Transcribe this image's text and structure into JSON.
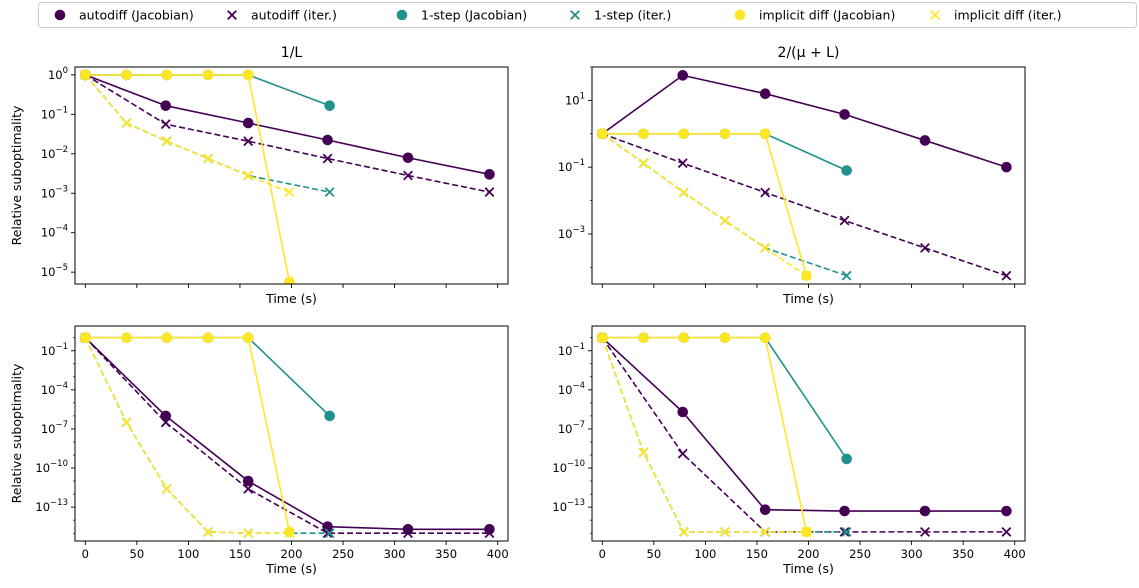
{
  "chart_data": {
    "type": "line",
    "legend": {
      "placement": "top",
      "entries": [
        {
          "label": "autodiff (Jacobian)",
          "color": "#440154",
          "marker": "circle"
        },
        {
          "label": "autodiff (iter.)",
          "color": "#440154",
          "marker": "x"
        },
        {
          "label": "1-step (Jacobian)",
          "color": "#21918c",
          "marker": "circle"
        },
        {
          "label": "1-step (iter.)",
          "color": "#21918c",
          "marker": "x"
        },
        {
          "label": "implicit diff (Jacobian)",
          "color": "#fde725",
          "marker": "circle"
        },
        {
          "label": "implicit diff (iter.)",
          "color": "#fde725",
          "marker": "x"
        }
      ]
    },
    "panels": [
      {
        "title": "1/L",
        "xlabel": "Time (s)",
        "ylabel": "Relative suboptimality",
        "yscale": "log",
        "xlim": [
          -10,
          410
        ],
        "xticks": [
          0,
          50,
          100,
          150,
          200,
          250,
          300,
          350,
          400
        ],
        "show_xticklabels": false,
        "ylim_exp": [
          -5.3,
          0.2
        ],
        "yticks": [
          {
            "exp": 0,
            "label": "10^0"
          },
          {
            "exp": -1,
            "label": "10^-1"
          },
          {
            "exp": -2,
            "label": "10^-2"
          },
          {
            "exp": -3,
            "label": "10^-3"
          },
          {
            "exp": -4,
            "label": "10^-4"
          },
          {
            "exp": -5,
            "label": "10^-5"
          }
        ],
        "series": [
          {
            "name": "autodiff (Jacobian)",
            "x": [
              0,
              78,
              158,
              235,
              313,
              392
            ],
            "y_exp": [
              0,
              -0.78,
              -1.22,
              -1.65,
              -2.1,
              -2.52
            ]
          },
          {
            "name": "autodiff (iter.)",
            "x": [
              0,
              78,
              158,
              235,
              313,
              392
            ],
            "y_exp": [
              0,
              -1.25,
              -1.68,
              -2.12,
              -2.55,
              -2.97
            ]
          },
          {
            "name": "1-step (Jacobian)",
            "x": [
              0,
              40,
              79,
              119,
              158,
              237
            ],
            "y_exp": [
              0,
              0,
              0,
              0,
              0,
              -0.78
            ]
          },
          {
            "name": "1-step (iter.)",
            "x": [
              0,
              40,
              79,
              119,
              158,
              237
            ],
            "y_exp": [
              0,
              -1.22,
              -1.68,
              -2.12,
              -2.55,
              -2.97
            ]
          },
          {
            "name": "implicit diff (Jacobian)",
            "x": [
              0,
              40,
              79,
              119,
              158,
              198
            ],
            "y_exp": [
              0,
              0,
              0,
              0,
              0,
              -5.25
            ]
          },
          {
            "name": "implicit diff (iter.)",
            "x": [
              0,
              40,
              79,
              119,
              158,
              198
            ],
            "y_exp": [
              0,
              -1.22,
              -1.68,
              -2.12,
              -2.55,
              -2.97
            ]
          }
        ]
      },
      {
        "title": "2/(μ + L)",
        "xlabel": "Time (s)",
        "ylabel": "",
        "yscale": "log",
        "xlim": [
          -10,
          410
        ],
        "xticks": [
          0,
          50,
          100,
          150,
          200,
          250,
          300,
          350,
          400
        ],
        "show_xticklabels": false,
        "ylim_exp": [
          -4.5,
          2.0
        ],
        "yticks": [
          {
            "exp": 1,
            "label": "10^1"
          },
          {
            "exp": -1,
            "label": "10^-1"
          },
          {
            "exp": -3,
            "label": "10^-3"
          }
        ],
        "series": [
          {
            "name": "autodiff (Jacobian)",
            "x": [
              0,
              78,
              158,
              235,
              313,
              392
            ],
            "y_exp": [
              0,
              1.75,
              1.2,
              0.58,
              -0.2,
              -1.0
            ]
          },
          {
            "name": "autodiff (iter.)",
            "x": [
              0,
              78,
              158,
              235,
              313,
              392
            ],
            "y_exp": [
              0,
              -0.88,
              -1.76,
              -2.6,
              -3.42,
              -4.25
            ]
          },
          {
            "name": "1-step (Jacobian)",
            "x": [
              0,
              40,
              79,
              119,
              158,
              237
            ],
            "y_exp": [
              0,
              0,
              0,
              0,
              0,
              -1.1
            ]
          },
          {
            "name": "1-step (iter.)",
            "x": [
              0,
              40,
              79,
              119,
              158,
              237
            ],
            "y_exp": [
              0,
              -0.88,
              -1.76,
              -2.6,
              -3.42,
              -4.25
            ]
          },
          {
            "name": "implicit diff (Jacobian)",
            "x": [
              0,
              40,
              79,
              119,
              158,
              198
            ],
            "y_exp": [
              0,
              0,
              0,
              0,
              0,
              -4.25
            ]
          },
          {
            "name": "implicit diff (iter.)",
            "x": [
              0,
              40,
              79,
              119,
              158,
              198
            ],
            "y_exp": [
              0,
              -0.88,
              -1.76,
              -2.6,
              -3.42,
              -4.25
            ]
          }
        ]
      },
      {
        "title": "",
        "xlabel": "Time (s)",
        "ylabel": "Relative suboptimality",
        "yscale": "log",
        "xlim": [
          -10,
          410
        ],
        "xticks": [
          0,
          50,
          100,
          150,
          200,
          250,
          300,
          350,
          400
        ],
        "show_xticklabels": true,
        "ylim_exp": [
          -15.6,
          0.9
        ],
        "yticks": [
          {
            "exp": -1,
            "label": "10^-1"
          },
          {
            "exp": -4,
            "label": "10^-4"
          },
          {
            "exp": -7,
            "label": "10^-7"
          },
          {
            "exp": -10,
            "label": "10^-10"
          },
          {
            "exp": -13,
            "label": "10^-13"
          }
        ],
        "series": [
          {
            "name": "autodiff (Jacobian)",
            "x": [
              0,
              78,
              158,
              235,
              313,
              392
            ],
            "y_exp": [
              0,
              -6.0,
              -11.0,
              -14.5,
              -14.7,
              -14.7
            ]
          },
          {
            "name": "autodiff (iter.)",
            "x": [
              0,
              78,
              158,
              235,
              313,
              392
            ],
            "y_exp": [
              0,
              -6.5,
              -11.6,
              -15.0,
              -15.0,
              -15.0
            ]
          },
          {
            "name": "1-step (Jacobian)",
            "x": [
              0,
              40,
              79,
              119,
              158,
              237
            ],
            "y_exp": [
              0,
              0,
              0,
              0,
              0,
              -6.0
            ]
          },
          {
            "name": "1-step (iter.)",
            "x": [
              0,
              40,
              79,
              119,
              158,
              237
            ],
            "y_exp": [
              0,
              -6.5,
              -11.6,
              -14.9,
              -15.0,
              -15.0
            ]
          },
          {
            "name": "implicit diff (Jacobian)",
            "x": [
              0,
              40,
              79,
              119,
              158,
              198
            ],
            "y_exp": [
              0,
              0,
              0,
              0,
              0,
              -14.9
            ]
          },
          {
            "name": "implicit diff (iter.)",
            "x": [
              0,
              40,
              79,
              119,
              158,
              198
            ],
            "y_exp": [
              0,
              -6.5,
              -11.6,
              -14.9,
              -15.0,
              -15.0
            ]
          }
        ]
      },
      {
        "title": "",
        "xlabel": "Time (s)",
        "ylabel": "",
        "yscale": "log",
        "xlim": [
          -10,
          410
        ],
        "xticks": [
          0,
          50,
          100,
          150,
          200,
          250,
          300,
          350,
          400
        ],
        "show_xticklabels": true,
        "ylim_exp": [
          -15.6,
          0.9
        ],
        "yticks": [
          {
            "exp": -1,
            "label": "10^-1"
          },
          {
            "exp": -4,
            "label": "10^-4"
          },
          {
            "exp": -7,
            "label": "10^-7"
          },
          {
            "exp": -10,
            "label": "10^-10"
          },
          {
            "exp": -13,
            "label": "10^-13"
          }
        ],
        "series": [
          {
            "name": "autodiff (Jacobian)",
            "x": [
              0,
              78,
              158,
              235,
              313,
              392
            ],
            "y_exp": [
              0,
              -5.7,
              -13.2,
              -13.3,
              -13.3,
              -13.3
            ]
          },
          {
            "name": "autodiff (iter.)",
            "x": [
              0,
              78,
              158,
              235,
              313,
              392
            ],
            "y_exp": [
              0,
              -8.9,
              -14.9,
              -14.9,
              -14.9,
              -14.9
            ]
          },
          {
            "name": "1-step (Jacobian)",
            "x": [
              0,
              40,
              79,
              119,
              158,
              237
            ],
            "y_exp": [
              0,
              0,
              0,
              0,
              0,
              -9.3
            ]
          },
          {
            "name": "1-step (iter.)",
            "x": [
              0,
              40,
              79,
              119,
              158,
              237
            ],
            "y_exp": [
              0,
              -8.8,
              -14.9,
              -14.9,
              -14.9,
              -14.9
            ]
          },
          {
            "name": "implicit diff (Jacobian)",
            "x": [
              0,
              40,
              79,
              119,
              158,
              198
            ],
            "y_exp": [
              0,
              0,
              0,
              0,
              0,
              -14.9
            ]
          },
          {
            "name": "implicit diff (iter.)",
            "x": [
              0,
              40,
              79,
              119,
              158,
              198
            ],
            "y_exp": [
              0,
              -8.8,
              -14.9,
              -14.9,
              -14.9,
              -14.9
            ]
          }
        ]
      }
    ]
  }
}
